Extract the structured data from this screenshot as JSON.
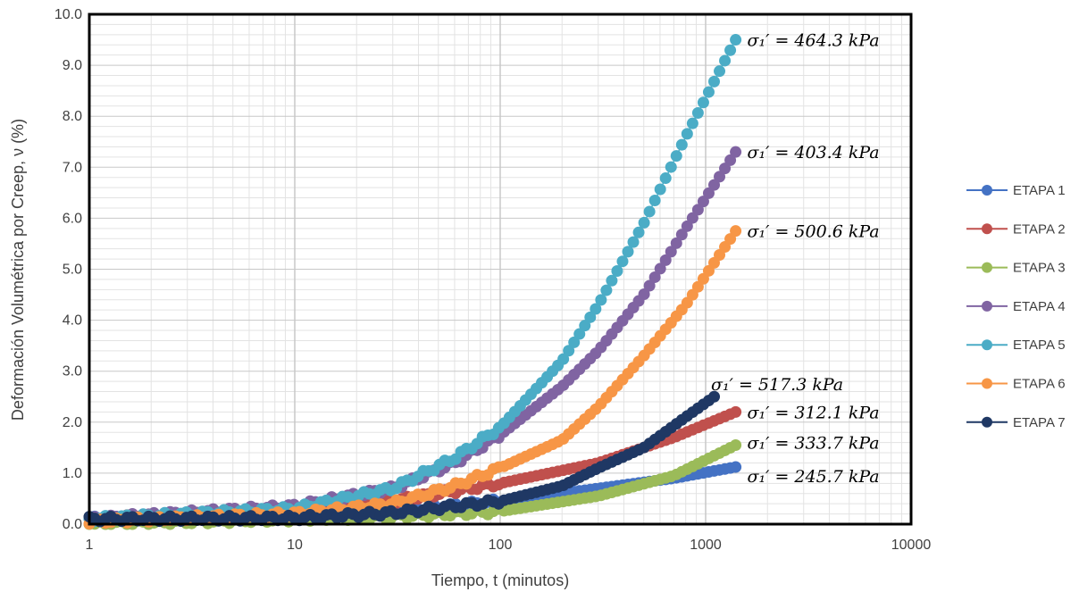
{
  "chart_data": {
    "type": "scatter",
    "title": "",
    "xlabel": "Tiempo, t (minutos)",
    "ylabel": "Deformación Volumétrica por Creep, ν (%)",
    "xscale": "log",
    "xlim": [
      1,
      10000
    ],
    "ylim": [
      0,
      10
    ],
    "x_ticks": [
      "1",
      "10",
      "100",
      "1000",
      "10000"
    ],
    "y_ticks": [
      "0.0",
      "1.0",
      "2.0",
      "3.0",
      "4.0",
      "5.0",
      "6.0",
      "7.0",
      "8.0",
      "9.0",
      "10.0"
    ],
    "grid": true,
    "legend_position": "right",
    "series": [
      {
        "name": "ETAPA 1",
        "color": "#4472C4",
        "anchors": [
          [
            1,
            0.1
          ],
          [
            5,
            0.15
          ],
          [
            10,
            0.18
          ],
          [
            30,
            0.25
          ],
          [
            100,
            0.45
          ],
          [
            300,
            0.7
          ],
          [
            700,
            0.9
          ],
          [
            1400,
            1.12
          ]
        ]
      },
      {
        "name": "ETAPA 2",
        "color": "#C0504D",
        "anchors": [
          [
            1,
            0.1
          ],
          [
            10,
            0.25
          ],
          [
            30,
            0.45
          ],
          [
            100,
            0.8
          ],
          [
            300,
            1.2
          ],
          [
            700,
            1.7
          ],
          [
            1400,
            2.2
          ]
        ]
      },
      {
        "name": "ETAPA 3",
        "color": "#9BBB59",
        "anchors": [
          [
            1,
            0.0
          ],
          [
            10,
            0.1
          ],
          [
            30,
            0.15
          ],
          [
            100,
            0.25
          ],
          [
            300,
            0.55
          ],
          [
            700,
            0.95
          ],
          [
            1400,
            1.55
          ]
        ]
      },
      {
        "name": "ETAPA 4",
        "color": "#8064A2",
        "anchors": [
          [
            1,
            0.1
          ],
          [
            10,
            0.35
          ],
          [
            30,
            0.7
          ],
          [
            60,
            1.2
          ],
          [
            100,
            1.75
          ],
          [
            200,
            2.7
          ],
          [
            300,
            3.4
          ],
          [
            500,
            4.5
          ],
          [
            800,
            5.8
          ],
          [
            1400,
            7.3
          ]
        ]
      },
      {
        "name": "ETAPA 5",
        "color": "#4BACC6",
        "anchors": [
          [
            1,
            0.1
          ],
          [
            10,
            0.3
          ],
          [
            30,
            0.7
          ],
          [
            60,
            1.3
          ],
          [
            100,
            1.9
          ],
          [
            200,
            3.2
          ],
          [
            300,
            4.3
          ],
          [
            500,
            5.9
          ],
          [
            800,
            7.6
          ],
          [
            1400,
            9.5
          ]
        ]
      },
      {
        "name": "ETAPA 6",
        "color": "#F79646",
        "anchors": [
          [
            1,
            0.05
          ],
          [
            10,
            0.2
          ],
          [
            30,
            0.4
          ],
          [
            60,
            0.75
          ],
          [
            100,
            1.1
          ],
          [
            200,
            1.65
          ],
          [
            300,
            2.3
          ],
          [
            500,
            3.3
          ],
          [
            800,
            4.3
          ],
          [
            1400,
            5.75
          ]
        ]
      },
      {
        "name": "ETAPA 7",
        "color": "#1F3864",
        "anchors": [
          [
            1,
            0.1
          ],
          [
            10,
            0.12
          ],
          [
            30,
            0.22
          ],
          [
            100,
            0.45
          ],
          [
            200,
            0.75
          ],
          [
            300,
            1.1
          ],
          [
            500,
            1.5
          ],
          [
            800,
            2.1
          ],
          [
            1100,
            2.5
          ]
        ]
      }
    ],
    "annotations": [
      {
        "text": "σ₁′ = 464.3 kPa",
        "x": 1500,
        "y": 9.5
      },
      {
        "text": "σ₁′ = 403.4 kPa",
        "x": 1500,
        "y": 7.3
      },
      {
        "text": "σ₁′ = 500.6 kPa",
        "x": 1500,
        "y": 5.75
      },
      {
        "text": "σ₁′ = 517.3 kPa",
        "x": 1000,
        "y": 2.75
      },
      {
        "text": "σ₁′ = 312.1 kPa",
        "x": 1500,
        "y": 2.2
      },
      {
        "text": "σ₁′ = 333.7 kPa",
        "x": 1500,
        "y": 1.6
      },
      {
        "text": "σ₁′ = 245.7 kPa",
        "x": 1500,
        "y": 0.95
      }
    ]
  }
}
